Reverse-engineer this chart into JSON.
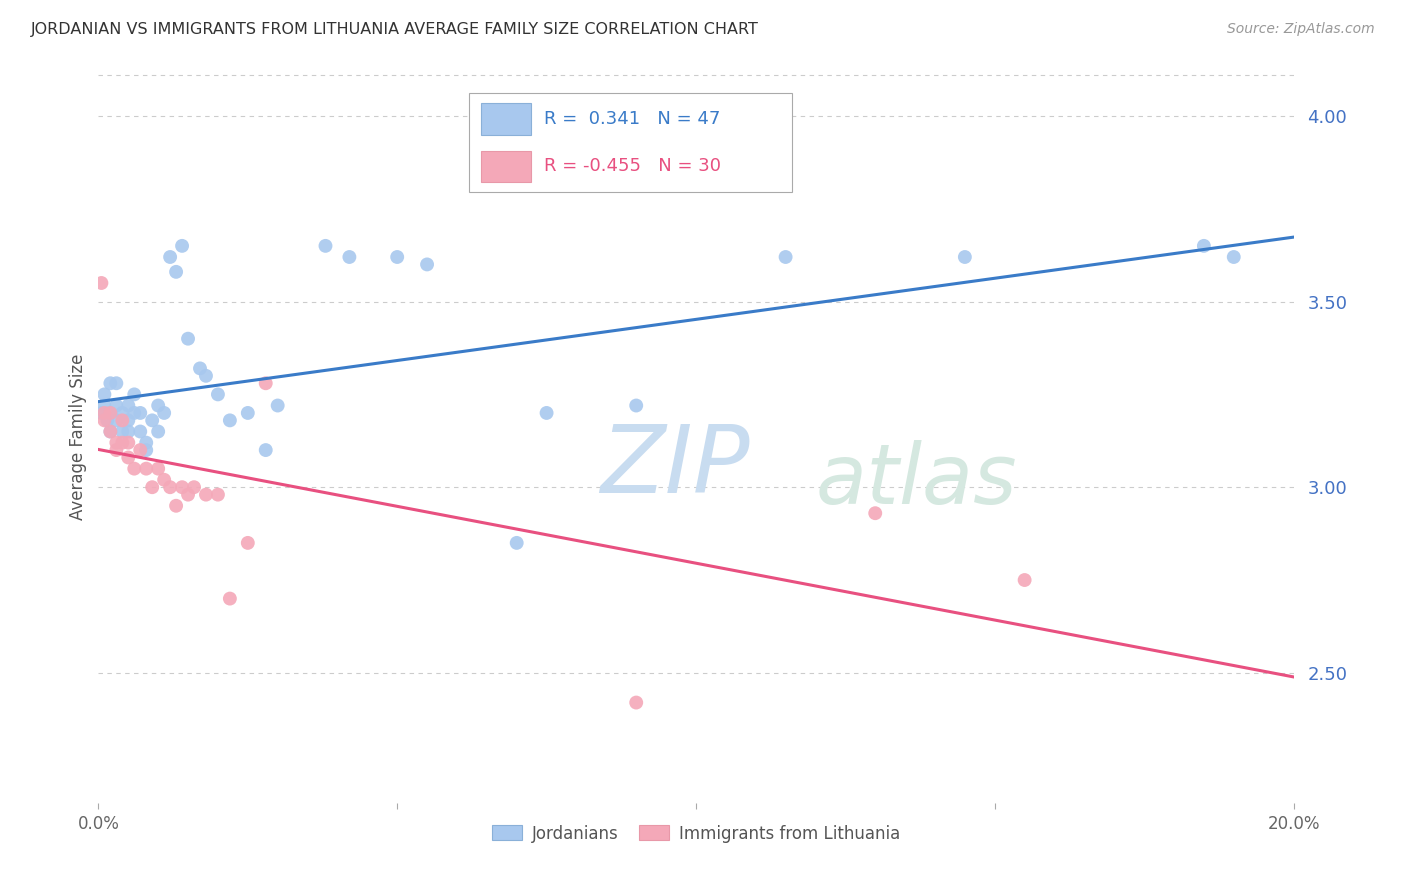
{
  "title": "JORDANIAN VS IMMIGRANTS FROM LITHUANIA AVERAGE FAMILY SIZE CORRELATION CHART",
  "source": "Source: ZipAtlas.com",
  "ylabel": "Average Family Size",
  "watermark_zip": "ZIP",
  "watermark_atlas": "atlas",
  "right_yticks": [
    2.5,
    3.0,
    3.5,
    4.0
  ],
  "xmin": 0.0,
  "xmax": 0.2,
  "ymin": 2.15,
  "ymax": 4.12,
  "blue_R": 0.341,
  "blue_N": 47,
  "pink_R": -0.455,
  "pink_N": 30,
  "blue_color": "#A8C8EE",
  "pink_color": "#F4A8B8",
  "blue_line_color": "#3A7BC8",
  "pink_line_color": "#E85080",
  "background_color": "#FFFFFF",
  "grid_color": "#CCCCCC",
  "title_color": "#333333",
  "right_axis_color": "#4472C4",
  "marker_size": 100,
  "blue_x": [
    0.0005,
    0.001,
    0.001,
    0.0015,
    0.002,
    0.002,
    0.002,
    0.003,
    0.003,
    0.003,
    0.004,
    0.004,
    0.005,
    0.005,
    0.005,
    0.006,
    0.006,
    0.007,
    0.007,
    0.008,
    0.008,
    0.009,
    0.01,
    0.01,
    0.011,
    0.012,
    0.013,
    0.014,
    0.015,
    0.017,
    0.018,
    0.02,
    0.022,
    0.025,
    0.028,
    0.03,
    0.038,
    0.042,
    0.05,
    0.055,
    0.07,
    0.075,
    0.09,
    0.115,
    0.145,
    0.185,
    0.19
  ],
  "blue_y": [
    3.2,
    3.22,
    3.25,
    3.18,
    3.15,
    3.2,
    3.28,
    3.18,
    3.22,
    3.28,
    3.15,
    3.2,
    3.18,
    3.22,
    3.15,
    3.2,
    3.25,
    3.15,
    3.2,
    3.1,
    3.12,
    3.18,
    3.22,
    3.15,
    3.2,
    3.62,
    3.58,
    3.65,
    3.4,
    3.32,
    3.3,
    3.25,
    3.18,
    3.2,
    3.1,
    3.22,
    3.65,
    3.62,
    3.62,
    3.6,
    2.85,
    3.2,
    3.22,
    3.62,
    3.62,
    3.65,
    3.62
  ],
  "pink_x": [
    0.0005,
    0.001,
    0.001,
    0.002,
    0.002,
    0.003,
    0.003,
    0.004,
    0.004,
    0.005,
    0.005,
    0.006,
    0.007,
    0.008,
    0.009,
    0.01,
    0.011,
    0.012,
    0.013,
    0.014,
    0.015,
    0.016,
    0.018,
    0.02,
    0.022,
    0.025,
    0.028,
    0.13,
    0.155,
    0.09
  ],
  "pink_y": [
    3.55,
    3.2,
    3.18,
    3.15,
    3.2,
    3.12,
    3.1,
    3.18,
    3.12,
    3.08,
    3.12,
    3.05,
    3.1,
    3.05,
    3.0,
    3.05,
    3.02,
    3.0,
    2.95,
    3.0,
    2.98,
    3.0,
    2.98,
    2.98,
    2.7,
    2.85,
    3.28,
    2.93,
    2.75,
    2.42
  ],
  "xtick_positions": [
    0.0,
    0.05,
    0.1,
    0.15,
    0.2
  ],
  "xtick_labels": [
    "0.0%",
    "",
    "",
    "",
    "20.0%"
  ]
}
